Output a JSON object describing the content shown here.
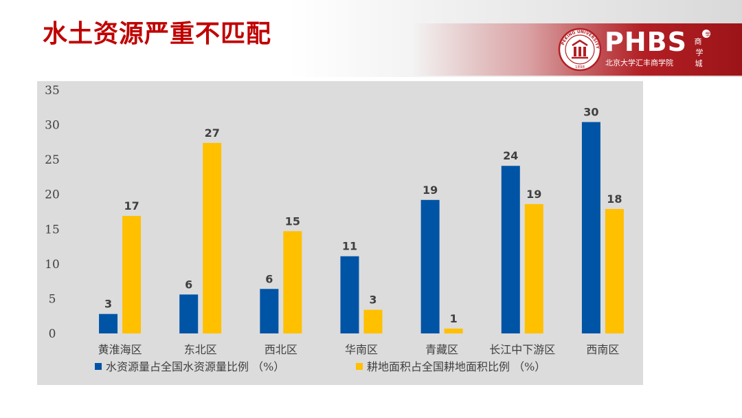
{
  "slide": {
    "title": "水土资源严重不匹配"
  },
  "logo": {
    "brand": "PHBS",
    "subtitle": "北京大学汇丰商学院",
    "seal_text": "PEKING UNIVERSITY",
    "seal_year": "1898",
    "calligraphy": "商学城",
    "color": "#b21f24"
  },
  "chart_data": {
    "type": "bar",
    "categories": [
      "黄淮海区",
      "东北区",
      "西北区",
      "华南区",
      "青藏区",
      "长江中下游区",
      "西南区"
    ],
    "series": [
      {
        "name": "水资源量占全国水资源量比例 （%）",
        "color": "#0054a6",
        "values": [
          2.8,
          5.6,
          6.4,
          11.1,
          19.2,
          24.1,
          30.4
        ],
        "labels": [
          "3",
          "6",
          "6",
          "11",
          "19",
          "24",
          "30"
        ]
      },
      {
        "name": "耕地面积占全国耕地面积比例 （%）",
        "color": "#ffc000",
        "values": [
          16.9,
          27.4,
          14.7,
          3.4,
          0.7,
          18.6,
          17.9
        ],
        "labels": [
          "17",
          "27",
          "15",
          "3",
          "1",
          "19",
          "18"
        ]
      }
    ],
    "yticks": [
      "0",
      "5",
      "10",
      "15",
      "20",
      "25",
      "30",
      "35"
    ],
    "ylim": [
      0,
      35
    ],
    "grid": false,
    "legend_position": "bottom",
    "title": "",
    "xlabel": "",
    "ylabel": ""
  }
}
